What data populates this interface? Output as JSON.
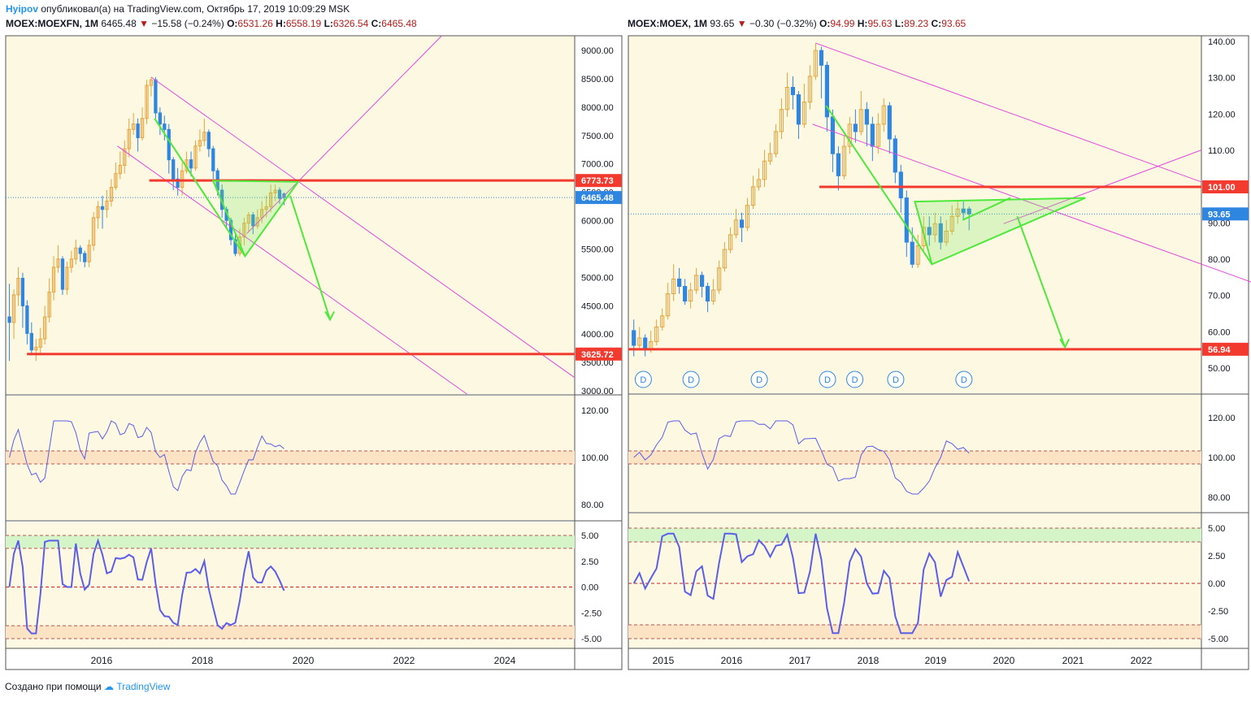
{
  "header": {
    "author": "Hyipov",
    "published": "опубликовал(а) на TradingView.com, Октябрь 17, 2019 10:09:29 MSK"
  },
  "footer": {
    "text": "Создано при помощи",
    "brand": "TradingView"
  },
  "colors": {
    "bg": "#fdf8e2",
    "up": "#e8a33a",
    "down": "#2f86e0",
    "trendline": "#e24bdc",
    "level": "#f23a2f",
    "triangle": "#4fe83c",
    "oscillator": "#5b5ee8",
    "priceTag": "#2f86e0"
  },
  "charts": [
    {
      "header": {
        "symbol": "MOEX:MOEXFN, 1M",
        "last": "6465.48",
        "arrow": "▼",
        "change": "−15.58 (−0.24%)",
        "o_label": "O:",
        "o": "6531.26",
        "h_label": "H:",
        "h": "6558.19",
        "l_label": "L:",
        "l": "6326.54",
        "c_label": "C:",
        "c": "6465.48"
      },
      "price_axis": [
        "9000.00",
        "8500.00",
        "8000.00",
        "7500.00",
        "7000.00",
        "6500.00",
        "6000.00",
        "5500.00",
        "5000.00",
        "4500.00",
        "4000.00",
        "3500.00",
        "3000.00"
      ],
      "level_tags": [
        {
          "text": "6773.73",
          "kind": "level"
        },
        {
          "text": "6465.48",
          "kind": "last"
        },
        {
          "text": "3625.72",
          "kind": "level"
        }
      ],
      "osc1_axis": [
        "120.00",
        "100.00",
        "80.00"
      ],
      "osc2_axis": [
        "5.00",
        "2.50",
        "0.00",
        "-2.50",
        "-5.00"
      ],
      "time_axis": [
        "2016",
        "2018",
        "2020",
        "2022",
        "2024"
      ],
      "dividends": []
    },
    {
      "header": {
        "symbol": "MOEX:MOEX, 1M",
        "last": "93.65",
        "arrow": "▼",
        "change": "−0.30 (−0.32%)",
        "o_label": "O:",
        "o": "94.99",
        "h_label": "H:",
        "h": "95.63",
        "l_label": "L:",
        "l": "89.23",
        "c_label": "C:",
        "c": "93.65"
      },
      "price_axis": [
        "140.00",
        "130.00",
        "120.00",
        "110.00",
        "100.00",
        "90.00",
        "80.00",
        "70.00",
        "60.00",
        "50.00"
      ],
      "level_tags": [
        {
          "text": "101.00",
          "kind": "level"
        },
        {
          "text": "93.65",
          "kind": "last"
        },
        {
          "text": "56.94",
          "kind": "level"
        }
      ],
      "osc1_axis": [
        "120.00",
        "100.00",
        "80.00"
      ],
      "osc2_axis": [
        "5.00",
        "2.50",
        "0.00",
        "-2.50",
        "-5.00"
      ],
      "time_axis": [
        "2015",
        "2016",
        "2017",
        "2018",
        "2019",
        "2020",
        "2021",
        "2022"
      ],
      "dividends": [
        "D",
        "D",
        "D",
        "D",
        "D",
        "D",
        "D"
      ]
    }
  ],
  "chart_data": [
    {
      "type": "candlestick",
      "symbol": "MOEX:MOEXFN",
      "interval": "1M",
      "y_range": [
        2900,
        9400
      ],
      "x_range": [
        2014.6,
        2025.3
      ],
      "start": 2014.67,
      "step": 0.0833,
      "candles": [
        [
          4300,
          4200,
          4900,
          3500
        ],
        [
          4200,
          4700,
          4800,
          3900
        ],
        [
          4700,
          5000,
          5200,
          4500
        ],
        [
          5000,
          4500,
          5100,
          4100
        ],
        [
          4500,
          4000,
          4600,
          3800
        ],
        [
          4000,
          3700,
          4200,
          3600
        ],
        [
          3700,
          3750,
          3900,
          3500
        ],
        [
          3750,
          3900,
          4100,
          3600
        ],
        [
          3900,
          4300,
          4500,
          3800
        ],
        [
          4300,
          4750,
          5000,
          4200
        ],
        [
          4750,
          5200,
          5400,
          4600
        ],
        [
          5200,
          5350,
          5600,
          5100
        ],
        [
          5350,
          4800,
          5400,
          4700
        ],
        [
          4800,
          5200,
          5300,
          4700
        ],
        [
          5200,
          5350,
          5500,
          5100
        ],
        [
          5350,
          5550,
          5700,
          5250
        ],
        [
          5550,
          5450,
          5600,
          5300
        ],
        [
          5450,
          5300,
          5500,
          5200
        ],
        [
          5300,
          5600,
          5700,
          5200
        ],
        [
          5600,
          6100,
          6200,
          5500
        ],
        [
          6100,
          6300,
          6400,
          5900
        ],
        [
          6300,
          6250,
          6500,
          5900
        ],
        [
          6250,
          6400,
          6600,
          6100
        ],
        [
          6400,
          6650,
          6800,
          6300
        ],
        [
          6650,
          6900,
          7100,
          6600
        ],
        [
          6900,
          7050,
          7300,
          6800
        ],
        [
          7050,
          7350,
          7500,
          6900
        ],
        [
          7350,
          7700,
          7900,
          7200
        ],
        [
          7700,
          7800,
          8000,
          7600
        ],
        [
          7800,
          7550,
          7900,
          7300
        ],
        [
          7550,
          7900,
          8100,
          7500
        ],
        [
          7900,
          8500,
          8600,
          7800
        ],
        [
          8500,
          8600,
          8650,
          8300
        ],
        [
          8600,
          8000,
          8650,
          7900
        ],
        [
          8000,
          7800,
          8100,
          7600
        ],
        [
          7800,
          7700,
          7950,
          7500
        ],
        [
          7700,
          7150,
          7800,
          6900
        ],
        [
          7150,
          6800,
          7200,
          6600
        ],
        [
          6800,
          6650,
          7000,
          6500
        ],
        [
          6650,
          6950,
          7100,
          6500
        ],
        [
          6950,
          7150,
          7300,
          6900
        ],
        [
          7150,
          7000,
          7300,
          6850
        ],
        [
          7000,
          7400,
          7500,
          6950
        ],
        [
          7400,
          7500,
          7700,
          7300
        ],
        [
          7500,
          7650,
          7900,
          7400
        ],
        [
          7650,
          7350,
          7700,
          7200
        ],
        [
          7350,
          6950,
          7400,
          6800
        ],
        [
          6950,
          6600,
          7000,
          6500
        ],
        [
          6600,
          6250,
          6700,
          6100
        ],
        [
          6250,
          6050,
          6300,
          5900
        ],
        [
          6050,
          5700,
          6100,
          5600
        ],
        [
          5700,
          5450,
          5800,
          5400
        ],
        [
          5450,
          5750,
          5900,
          5400
        ],
        [
          5750,
          6000,
          6100,
          5600
        ],
        [
          6000,
          6150,
          6200,
          5850
        ],
        [
          6150,
          5950,
          6200,
          5800
        ],
        [
          5950,
          6100,
          6250,
          5900
        ],
        [
          6100,
          6250,
          6400,
          6000
        ],
        [
          6250,
          6300,
          6500,
          6100
        ],
        [
          6300,
          6550,
          6700,
          6200
        ],
        [
          6550,
          6600,
          6700,
          6400
        ],
        [
          6600,
          6450,
          6650,
          6350
        ],
        [
          6531,
          6465,
          6558,
          6327
        ]
      ],
      "horizontal_levels": [
        6773.73,
        3625.72
      ],
      "last_price": 6465.48
    },
    {
      "type": "candlestick",
      "symbol": "MOEX:MOEX",
      "interval": "1M",
      "y_range": [
        45,
        142
      ],
      "x_range": [
        2014.5,
        2022.9
      ],
      "start": 2014.58,
      "step": 0.0833,
      "candles": [
        [
          62,
          58,
          65,
          55
        ],
        [
          58,
          60,
          63,
          57
        ],
        [
          60,
          57,
          61,
          55
        ],
        [
          57,
          59,
          62,
          56
        ],
        [
          59,
          63,
          65,
          58
        ],
        [
          63,
          66,
          68,
          62
        ],
        [
          66,
          72,
          75,
          65
        ],
        [
          72,
          76,
          80,
          70
        ],
        [
          76,
          74,
          79,
          72
        ],
        [
          74,
          70,
          76,
          69
        ],
        [
          70,
          73,
          75,
          68
        ],
        [
          73,
          77,
          79,
          72
        ],
        [
          77,
          74,
          78,
          71
        ],
        [
          74,
          70,
          75,
          67
        ],
        [
          70,
          73,
          76,
          69
        ],
        [
          73,
          79,
          81,
          72
        ],
        [
          79,
          84,
          86,
          78
        ],
        [
          84,
          88,
          90,
          83
        ],
        [
          88,
          92,
          95,
          87
        ],
        [
          92,
          90,
          94,
          86
        ],
        [
          90,
          96,
          98,
          89
        ],
        [
          96,
          101,
          104,
          95
        ],
        [
          101,
          103,
          106,
          100
        ],
        [
          103,
          108,
          111,
          101
        ],
        [
          108,
          110,
          113,
          107
        ],
        [
          110,
          116,
          118,
          109
        ],
        [
          116,
          122,
          125,
          114
        ],
        [
          122,
          128,
          132,
          120
        ],
        [
          128,
          126,
          131,
          122
        ],
        [
          126,
          118,
          127,
          114
        ],
        [
          118,
          124,
          129,
          117
        ],
        [
          124,
          131,
          134,
          122
        ],
        [
          131,
          138,
          140,
          130
        ],
        [
          138,
          134,
          139,
          125
        ],
        [
          134,
          120,
          135,
          116
        ],
        [
          120,
          110,
          122,
          105
        ],
        [
          110,
          104,
          112,
          100
        ],
        [
          104,
          112,
          115,
          103
        ],
        [
          112,
          118,
          120,
          110
        ],
        [
          118,
          116,
          122,
          113
        ],
        [
          116,
          122,
          127,
          115
        ],
        [
          122,
          118,
          124,
          112
        ],
        [
          118,
          112,
          120,
          108
        ],
        [
          112,
          118,
          121,
          110
        ],
        [
          118,
          123,
          125,
          116
        ],
        [
          123,
          114,
          124,
          110
        ],
        [
          114,
          105,
          115,
          102
        ],
        [
          105,
          98,
          107,
          94
        ],
        [
          98,
          86,
          100,
          82
        ],
        [
          86,
          80,
          90,
          79
        ],
        [
          80,
          85,
          88,
          79
        ],
        [
          85,
          90,
          93,
          83
        ],
        [
          90,
          88,
          93,
          85
        ],
        [
          88,
          91,
          94,
          86
        ],
        [
          91,
          86,
          93,
          84
        ],
        [
          86,
          89,
          92,
          85
        ],
        [
          89,
          93,
          96,
          88
        ],
        [
          93,
          95,
          97,
          91
        ],
        [
          95,
          94,
          97,
          92
        ],
        [
          94.99,
          93.65,
          95.63,
          89.23
        ]
      ],
      "horizontal_levels": [
        101.0,
        56.94
      ],
      "last_price": 93.65
    }
  ]
}
